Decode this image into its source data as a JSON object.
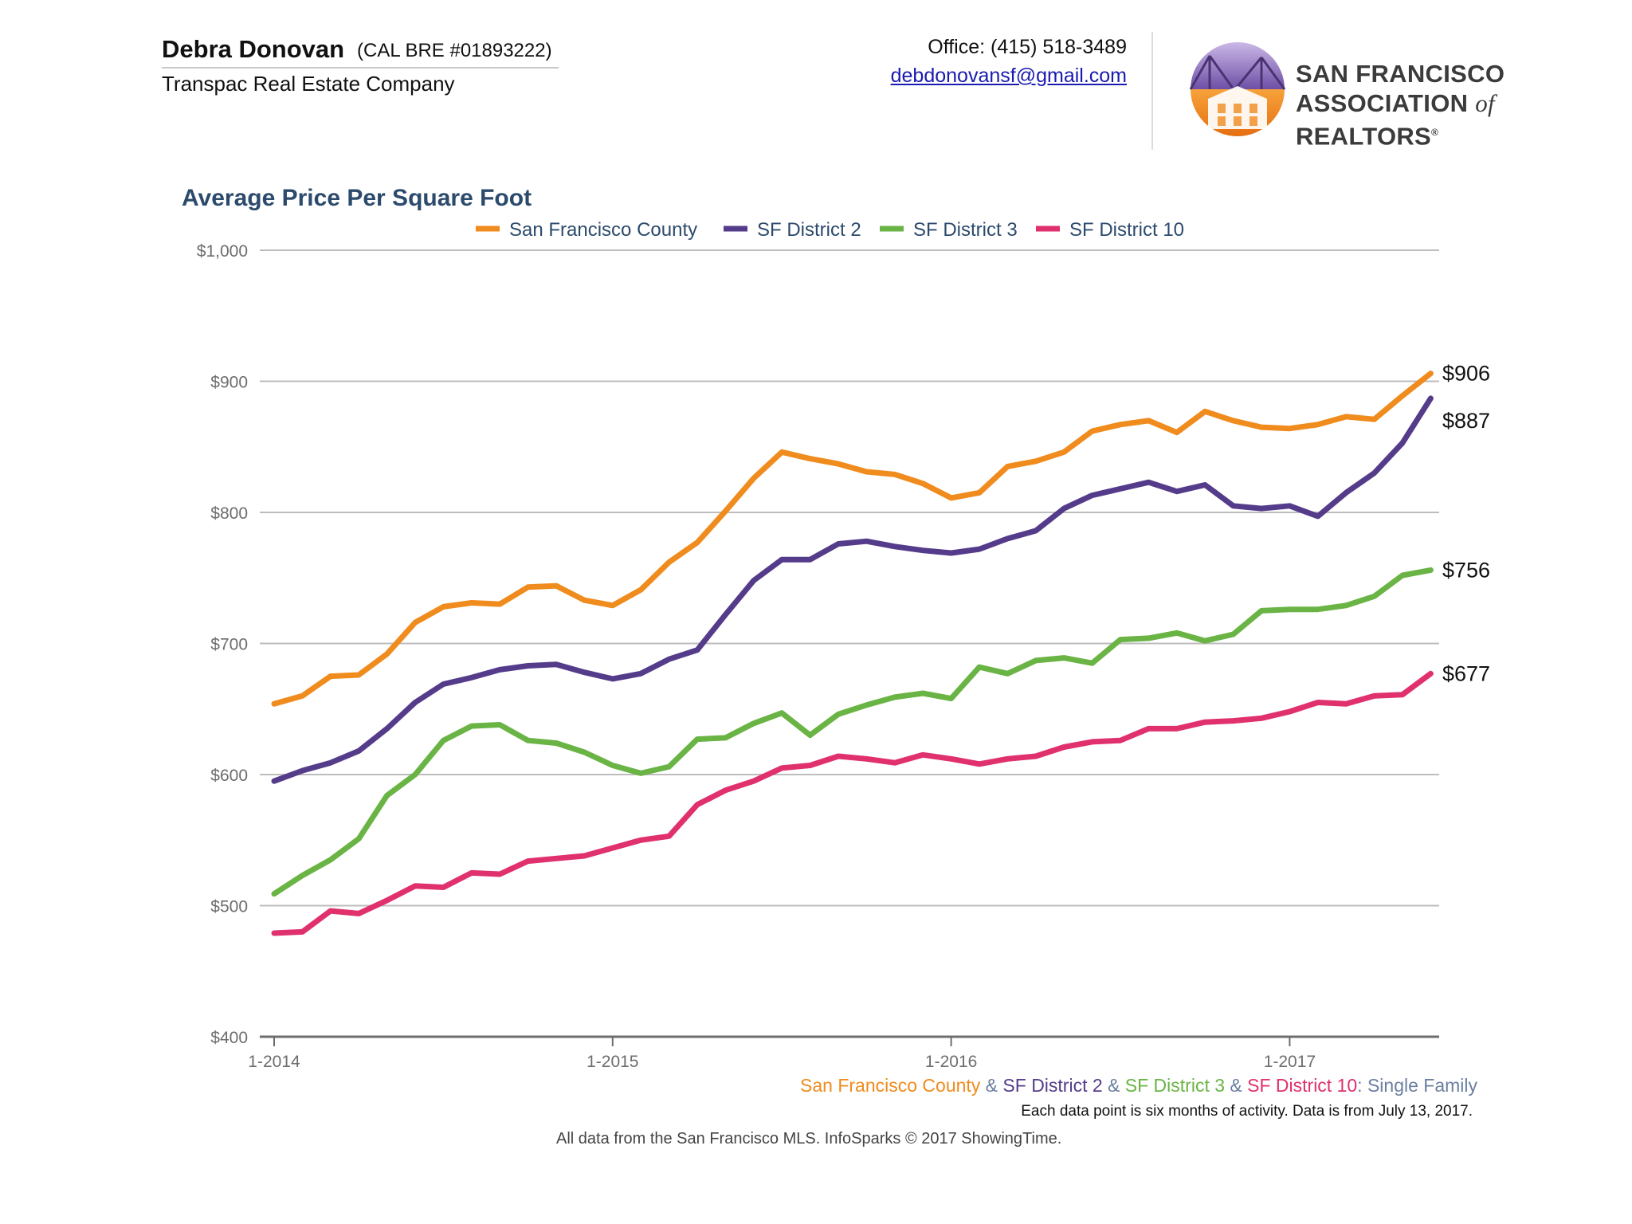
{
  "header": {
    "agent_name": "Debra Donovan",
    "license": "(CAL BRE #01893222)",
    "company": "Transpac Real Estate Company",
    "office": "Office: (415) 518-3489",
    "email": "debdonovansf@gmail.com",
    "logo_line1": "SAN FRANCISCO",
    "logo_line2_a": "ASSOCIATION ",
    "logo_line2_of": "of",
    "logo_line2_b": " REALTORS",
    "logo_reg": "®"
  },
  "chart_data": {
    "type": "line",
    "title": "Average Price Per Square Foot",
    "x_tick_labels": [
      "1-2014",
      "1-2015",
      "1-2016",
      "1-2017"
    ],
    "x_tick_index": [
      0,
      12,
      24,
      36
    ],
    "ylim": [
      400,
      1000
    ],
    "y_ticks": [
      400,
      500,
      600,
      700,
      800,
      900,
      1000
    ],
    "y_tick_labels": [
      "$400",
      "$500",
      "$600",
      "$700",
      "$800",
      "$900",
      "$1,000"
    ],
    "grid": true,
    "legend_position": "top",
    "series": [
      {
        "name": "San Francisco County",
        "color": "#f08b1d",
        "end_label": "$906",
        "values": [
          654,
          660,
          675,
          676,
          692,
          716,
          728,
          731,
          730,
          743,
          744,
          733,
          729,
          741,
          762,
          777,
          801,
          826,
          846,
          841,
          837,
          831,
          829,
          822,
          811,
          815,
          835,
          839,
          846,
          862,
          867,
          870,
          861,
          877,
          870,
          865,
          864,
          867,
          873,
          871,
          889,
          906
        ]
      },
      {
        "name": "SF District 2",
        "color": "#553c8b",
        "end_label": "$887",
        "values": [
          595,
          603,
          609,
          618,
          635,
          655,
          669,
          674,
          680,
          683,
          684,
          678,
          673,
          677,
          688,
          695,
          722,
          748,
          764,
          764,
          776,
          778,
          774,
          771,
          769,
          772,
          780,
          786,
          803,
          813,
          818,
          823,
          816,
          821,
          805,
          803,
          805,
          797,
          815,
          830,
          853,
          887
        ]
      },
      {
        "name": "SF District 3",
        "color": "#6ab445",
        "end_label": "$756",
        "values": [
          509,
          523,
          535,
          551,
          584,
          600,
          626,
          637,
          638,
          626,
          624,
          617,
          607,
          601,
          606,
          627,
          628,
          639,
          647,
          630,
          646,
          653,
          659,
          662,
          658,
          682,
          677,
          687,
          689,
          685,
          703,
          704,
          708,
          702,
          707,
          725,
          726,
          726,
          729,
          736,
          752,
          756
        ]
      },
      {
        "name": "SF District 10",
        "color": "#e0306e",
        "end_label": "$677",
        "values": [
          479,
          480,
          496,
          494,
          504,
          515,
          514,
          525,
          524,
          534,
          536,
          538,
          544,
          550,
          553,
          577,
          588,
          595,
          605,
          607,
          614,
          612,
          609,
          615,
          612,
          608,
          612,
          614,
          621,
          625,
          626,
          635,
          635,
          640,
          641,
          643,
          648,
          655,
          654,
          660,
          661,
          677
        ]
      }
    ],
    "footnote_parts": [
      {
        "text": "San Francisco County",
        "color": "#f08b1d"
      },
      {
        "text": " & ",
        "color": "#6a7fa0"
      },
      {
        "text": "SF District 2",
        "color": "#553c8b"
      },
      {
        "text": " & ",
        "color": "#6a7fa0"
      },
      {
        "text": "SF District 3",
        "color": "#6ab445"
      },
      {
        "text": " & ",
        "color": "#6a7fa0"
      },
      {
        "text": "SF District 10",
        "color": "#e0306e"
      },
      {
        "text": ": Single Family",
        "color": "#6a7fa0"
      }
    ],
    "note": "Each data point is six months of activity. Data is from July 13, 2017.",
    "source": "All data from the San Francisco MLS. InfoSparks © 2017 ShowingTime."
  }
}
